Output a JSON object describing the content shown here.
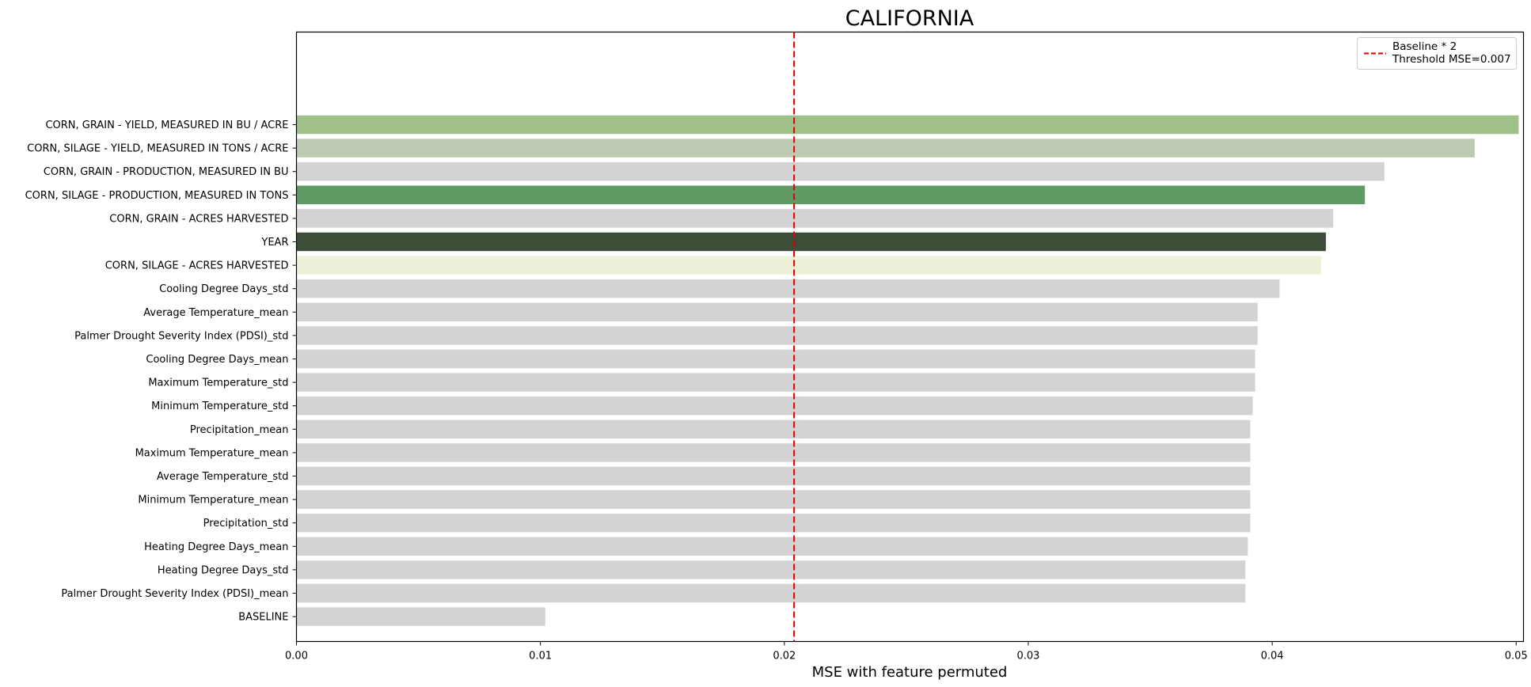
{
  "chart_data": {
    "type": "bar",
    "orientation": "horizontal",
    "title": "CALIFORNIA",
    "xlabel": "MSE with feature permuted",
    "ylabel": "",
    "xlim": [
      0,
      0.0503
    ],
    "xticks": [
      0.0,
      0.01,
      0.02,
      0.03,
      0.04,
      0.05
    ],
    "xtick_labels": [
      "0.00",
      "0.01",
      "0.02",
      "0.03",
      "0.04",
      "0.05"
    ],
    "grid": false,
    "categories": [
      "CORN, GRAIN - YIELD, MEASURED IN BU / ACRE",
      "CORN, SILAGE - YIELD, MEASURED IN TONS / ACRE",
      "CORN, GRAIN - PRODUCTION, MEASURED IN BU",
      "CORN, SILAGE - PRODUCTION, MEASURED IN TONS",
      "CORN, GRAIN - ACRES HARVESTED",
      "YEAR",
      "CORN, SILAGE - ACRES HARVESTED",
      "Cooling Degree Days_std",
      "Average Temperature_mean",
      "Palmer Drought Severity Index (PDSI)_std",
      "Cooling Degree Days_mean",
      "Maximum Temperature_std",
      "Minimum Temperature_std",
      "Precipitation_mean",
      "Maximum Temperature_mean",
      "Average Temperature_std",
      "Minimum Temperature_mean",
      "Precipitation_std",
      "Heating Degree Days_mean",
      "Heating Degree Days_std",
      "Palmer Drought Severity Index (PDSI)_mean",
      "BASELINE"
    ],
    "values": [
      0.0501,
      0.0483,
      0.0446,
      0.0438,
      0.0425,
      0.0422,
      0.042,
      0.0403,
      0.0394,
      0.0394,
      0.0393,
      0.0393,
      0.0392,
      0.0391,
      0.0391,
      0.0391,
      0.0391,
      0.0391,
      0.039,
      0.0389,
      0.0389,
      0.0102
    ],
    "bar_colors": [
      "#a0c08a",
      "#bfcab2",
      "#d3d3d3",
      "#609a65",
      "#d3d3d3",
      "#3c4e38",
      "#edf1d8",
      "#d3d3d3",
      "#d3d3d3",
      "#d3d3d3",
      "#d3d3d3",
      "#d3d3d3",
      "#d3d3d3",
      "#d3d3d3",
      "#d3d3d3",
      "#d3d3d3",
      "#d3d3d3",
      "#d3d3d3",
      "#d3d3d3",
      "#d3d3d3",
      "#d3d3d3",
      "#d3d3d3"
    ],
    "threshold": {
      "value": 0.0204,
      "color": "#dd0000",
      "style": "dashed"
    },
    "legend": {
      "placement": "top-right",
      "entries": [
        "Baseline * 2",
        "Threshold MSE=0.007"
      ]
    }
  }
}
